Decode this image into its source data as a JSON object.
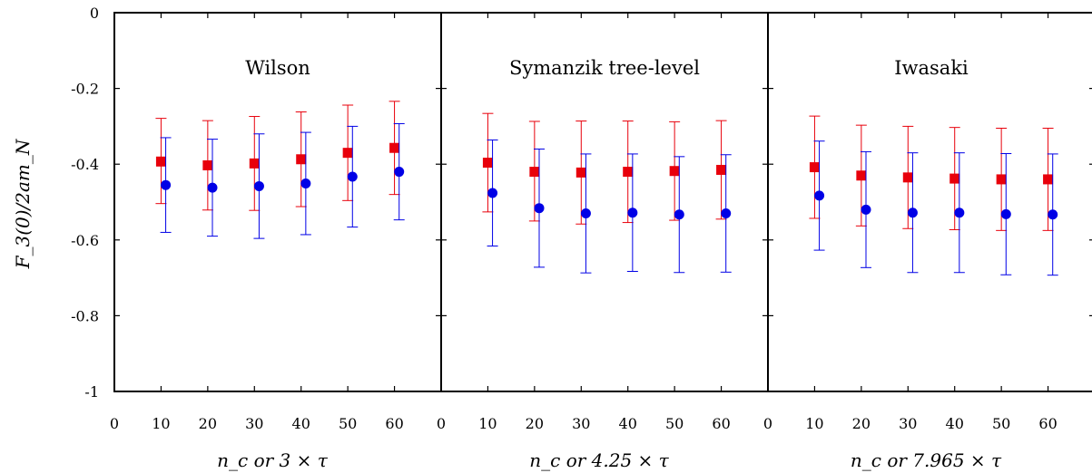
{
  "chart_data": [
    {
      "type": "scatter",
      "title": "Wilson",
      "xlabel": "n_c or 3 × τ",
      "ylabel": "F_3(0)/2am_N",
      "xlim": [
        0,
        70
      ],
      "ylim": [
        -1,
        0
      ],
      "xticks": [
        "0",
        "10",
        "20",
        "30",
        "40",
        "50",
        "60"
      ],
      "yticks": [
        "0",
        "-0.2",
        "-0.4",
        "-0.6",
        "-0.8",
        "-1"
      ],
      "grid": false,
      "series": [
        {
          "marker": "square",
          "color": "#e8000b",
          "x": [
            10,
            20,
            30,
            40,
            50,
            60
          ],
          "y": [
            -0.393,
            -0.403,
            -0.398,
            -0.387,
            -0.37,
            -0.357
          ],
          "err_upper": [
            0.114,
            0.118,
            0.124,
            0.125,
            0.126,
            0.123
          ],
          "err_lower": [
            0.111,
            0.118,
            0.124,
            0.125,
            0.126,
            0.123
          ]
        },
        {
          "marker": "circle",
          "color": "#0000e6",
          "x": [
            11,
            21,
            31,
            41,
            51,
            61
          ],
          "y": [
            -0.455,
            -0.462,
            -0.458,
            -0.451,
            -0.433,
            -0.42
          ],
          "err_upper": [
            0.125,
            0.128,
            0.138,
            0.135,
            0.133,
            0.127
          ],
          "err_lower": [
            0.125,
            0.128,
            0.138,
            0.135,
            0.133,
            0.127
          ]
        }
      ]
    },
    {
      "type": "scatter",
      "title": "Symanzik tree-level",
      "xlabel": "n_c or 4.25 × τ",
      "xlim": [
        0,
        70
      ],
      "ylim": [
        -1,
        0
      ],
      "xticks": [
        "0",
        "10",
        "20",
        "30",
        "40",
        "50",
        "60"
      ],
      "grid": false,
      "series": [
        {
          "marker": "square",
          "color": "#e8000b",
          "x": [
            10,
            20,
            30,
            40,
            50,
            60
          ],
          "y": [
            -0.396,
            -0.42,
            -0.422,
            -0.42,
            -0.418,
            -0.415
          ],
          "err_upper": [
            0.13,
            0.133,
            0.136,
            0.134,
            0.13,
            0.13
          ],
          "err_lower": [
            0.13,
            0.13,
            0.136,
            0.134,
            0.13,
            0.13
          ]
        },
        {
          "marker": "circle",
          "color": "#0000e6",
          "x": [
            11,
            21,
            31,
            41,
            51,
            61
          ],
          "y": [
            -0.476,
            -0.516,
            -0.53,
            -0.528,
            -0.533,
            -0.53
          ],
          "err_upper": [
            0.14,
            0.156,
            0.157,
            0.155,
            0.153,
            0.155
          ],
          "err_lower": [
            0.14,
            0.156,
            0.157,
            0.155,
            0.153,
            0.155
          ]
        }
      ]
    },
    {
      "type": "scatter",
      "title": "Iwasaki",
      "xlabel": "n_c or 7.965 × τ",
      "xlim": [
        0,
        70
      ],
      "ylim": [
        -1,
        0
      ],
      "xticks": [
        "0",
        "10",
        "20",
        "30",
        "40",
        "50",
        "60"
      ],
      "grid": false,
      "series": [
        {
          "marker": "square",
          "color": "#e8000b",
          "x": [
            10,
            20,
            30,
            40,
            50,
            60
          ],
          "y": [
            -0.408,
            -0.43,
            -0.435,
            -0.438,
            -0.44,
            -0.44
          ],
          "err_upper": [
            0.135,
            0.133,
            0.135,
            0.135,
            0.135,
            0.135
          ],
          "err_lower": [
            0.135,
            0.133,
            0.135,
            0.135,
            0.135,
            0.135
          ]
        },
        {
          "marker": "circle",
          "color": "#0000e6",
          "x": [
            11,
            21,
            31,
            41,
            51,
            61
          ],
          "y": [
            -0.483,
            -0.52,
            -0.528,
            -0.528,
            -0.532,
            -0.533
          ],
          "err_upper": [
            0.144,
            0.153,
            0.158,
            0.158,
            0.16,
            0.16
          ],
          "err_lower": [
            0.144,
            0.153,
            0.158,
            0.158,
            0.16,
            0.16
          ]
        }
      ]
    }
  ]
}
